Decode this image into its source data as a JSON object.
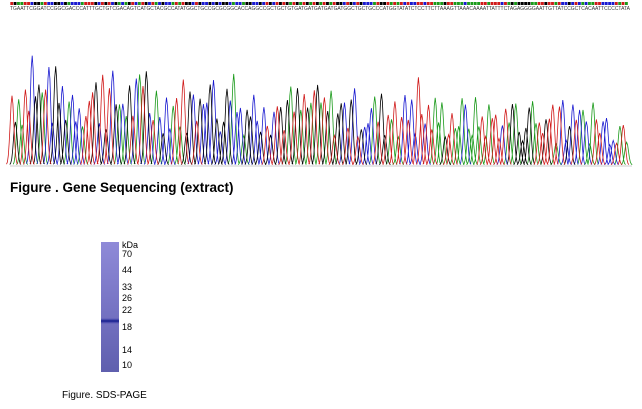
{
  "sequence": "TGAATTCGGATCCGGCGACCCATTTGCTGTCGACAGTCATGCTACGCCATATGGCTGCCGCGCGGCACCAGGCCGCTGCTGTGATGATGATGATGATGGCTGCTGCCCATGGTATATCTCCTTCTTAAAGTTAAACAAAATTATTTCTAGAGGGGAATTGTTATCCGCTCACAATTCCCCTATA",
  "figure1_caption": "Figure . Gene Sequencing (extract)",
  "gel": {
    "unit": "kDa",
    "markers": [
      "70",
      "44",
      "33",
      "26",
      "22",
      "18",
      "14",
      "10"
    ]
  },
  "figure2_caption": "Figure. SDS-PAGE"
}
